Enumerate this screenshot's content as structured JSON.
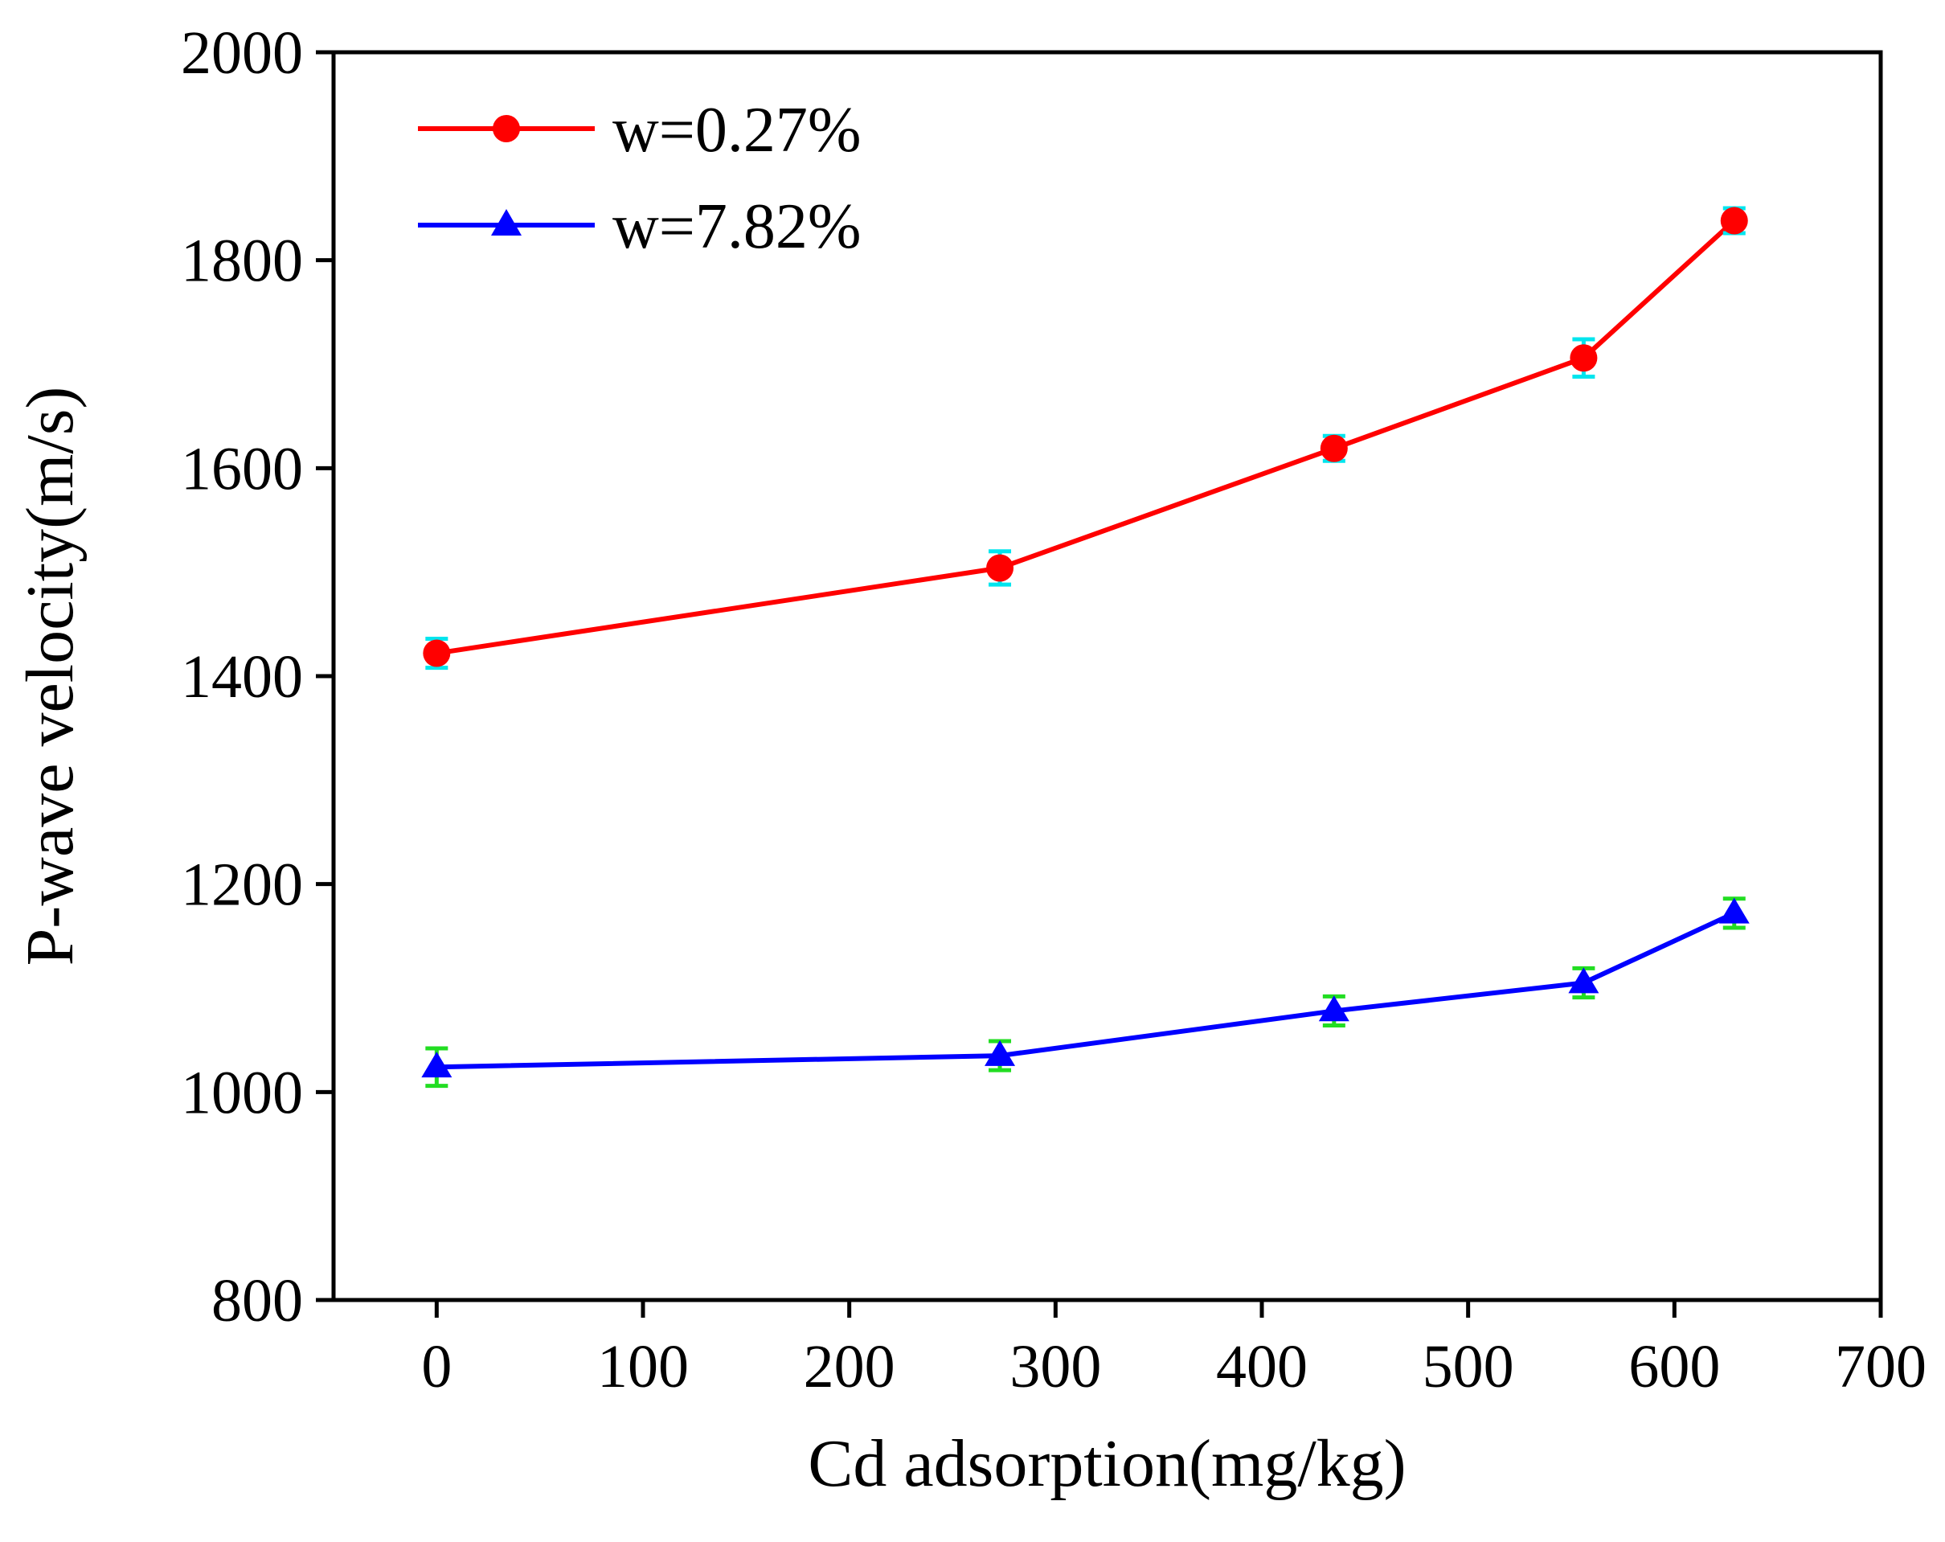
{
  "chart_data": {
    "type": "line",
    "title": "",
    "xlabel": "Cd adsorption(mg/kg)",
    "ylabel": "P-wave velocity(m/s)",
    "xlim": [
      -50,
      700
    ],
    "ylim": [
      800,
      2000
    ],
    "xticks": [
      0,
      100,
      200,
      300,
      400,
      500,
      600,
      700
    ],
    "yticks": [
      800,
      1000,
      1200,
      1400,
      1600,
      1800,
      2000
    ],
    "xtick_labels": [
      "0",
      "100",
      "200",
      "300",
      "400",
      "500",
      "600",
      "700"
    ],
    "ytick_labels": [
      "800",
      "1000",
      "1200",
      "1400",
      "1600",
      "1800",
      "2000"
    ],
    "legend_position": "top-left",
    "series": [
      {
        "name": "w=0.27%",
        "color": "#ff0000",
        "errorbar_color": "#00e5ee",
        "marker": "circle",
        "x": [
          0,
          273,
          435,
          556,
          629
        ],
        "y": [
          1422,
          1504,
          1619,
          1706,
          1838
        ],
        "error": [
          14,
          16,
          12,
          18,
          12
        ]
      },
      {
        "name": "w=7.82%",
        "color": "#0000ff",
        "errorbar_color": "#22dd22",
        "marker": "triangle",
        "x": [
          0,
          273,
          435,
          556,
          629
        ],
        "y": [
          1024,
          1035,
          1078,
          1105,
          1172
        ],
        "error": [
          18,
          14,
          14,
          14,
          14
        ]
      }
    ]
  }
}
